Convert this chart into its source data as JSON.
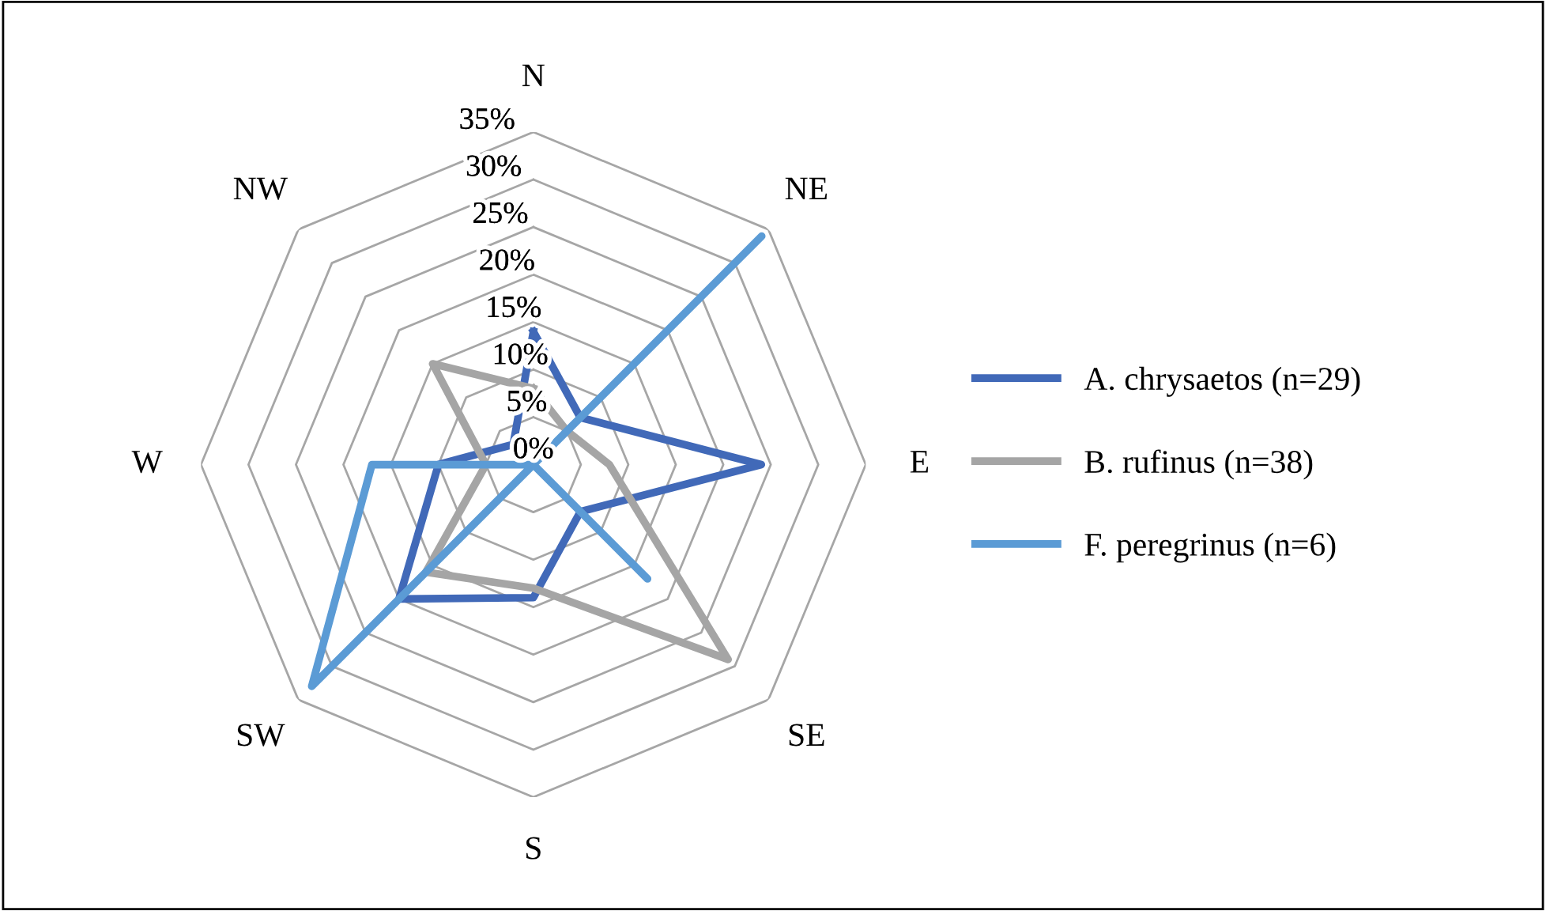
{
  "chart_data": {
    "type": "radar",
    "categories": [
      "N",
      "NE",
      "E",
      "SE",
      "S",
      "SW",
      "W",
      "NW"
    ],
    "series": [
      {
        "name": "A. chrysaetos (n=29)",
        "color": "#4169b8",
        "values": [
          14,
          7,
          24,
          7,
          14,
          20,
          10,
          3
        ]
      },
      {
        "name": "B. rufinus (n=38)",
        "color": "#a5a5a5",
        "values": [
          8,
          5,
          8,
          29,
          13,
          16,
          5,
          15
        ]
      },
      {
        "name": "F. peregrinus (n=6)",
        "color": "#5b9bd5",
        "values": [
          0,
          34,
          0,
          17,
          0,
          33,
          17,
          0
        ]
      }
    ],
    "ylim": [
      0,
      35
    ],
    "yticks": [
      {
        "value": 0,
        "label": "0%"
      },
      {
        "value": 5,
        "label": "5%"
      },
      {
        "value": 10,
        "label": "10%"
      },
      {
        "value": 15,
        "label": "15%"
      },
      {
        "value": 20,
        "label": "20%"
      },
      {
        "value": 25,
        "label": "25%"
      },
      {
        "value": 30,
        "label": "30%"
      },
      {
        "value": 35,
        "label": "35%"
      }
    ],
    "grid": true,
    "legend": "right",
    "marker": "none",
    "line_style": "solid"
  }
}
